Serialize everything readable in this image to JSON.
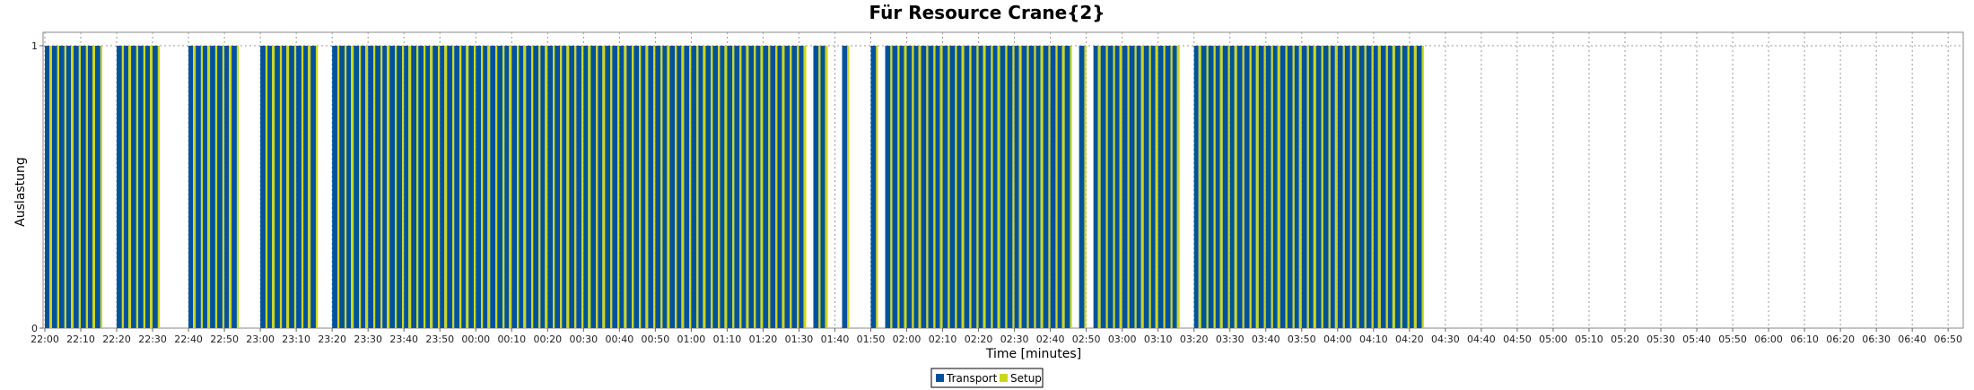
{
  "chart_data": {
    "type": "bar",
    "title": "Für Resource Crane{2}",
    "xlabel": "Time [minutes]",
    "ylabel": "Auslastung",
    "y_ticks": [
      "0",
      "1"
    ],
    "ylim": [
      0,
      1
    ],
    "x_ticks": [
      "22:00",
      "22:10",
      "22:20",
      "22:30",
      "22:40",
      "22:50",
      "23:00",
      "23:10",
      "23:20",
      "23:30",
      "23:40",
      "23:50",
      "00:00",
      "00:10",
      "00:20",
      "00:30",
      "00:40",
      "00:50",
      "01:00",
      "01:10",
      "01:20",
      "01:30",
      "01:40",
      "01:50",
      "02:00",
      "02:10",
      "02:20",
      "02:30",
      "02:40",
      "02:50",
      "03:00",
      "03:10",
      "03:20",
      "03:30",
      "03:40",
      "03:50",
      "04:00",
      "04:10",
      "04:20",
      "04:30",
      "04:40",
      "04:50",
      "05:00",
      "05:10",
      "05:20",
      "05:30",
      "05:40",
      "05:50",
      "06:00",
      "06:10",
      "06:20",
      "06:30",
      "06:40",
      "06:50"
    ],
    "xlim_minutes": [
      0,
      537
    ],
    "gaps_minutes": [
      [
        17,
        19
      ],
      [
        32,
        40
      ],
      [
        54,
        60
      ],
      [
        77,
        79
      ],
      [
        212,
        214
      ],
      [
        218,
        222
      ],
      [
        224,
        229
      ],
      [
        232,
        233
      ],
      [
        286,
        288
      ],
      [
        290,
        291
      ],
      [
        317,
        319
      ]
    ],
    "end_minutes": 384,
    "grid": true,
    "legend_position": "bottom-center",
    "series": [
      {
        "name": "Transport",
        "color": "#00529b",
        "value": 1
      },
      {
        "name": "Setup",
        "color": "#cdd61b",
        "value": 1
      }
    ]
  }
}
